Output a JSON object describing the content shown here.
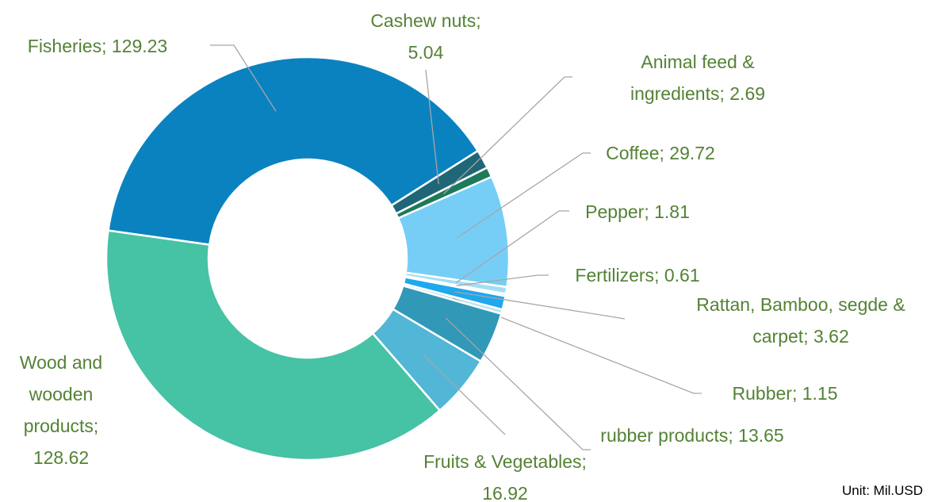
{
  "chart_data": {
    "type": "donut",
    "categories": [
      "Fisheries",
      "Cashew nuts",
      "Animal feed & ingredients",
      "Coffee",
      "Pepper",
      "Fertilizers",
      "Rattan, Bamboo, segde & carpet",
      "Rubber",
      "rubber products",
      "Fruits & Vegetables",
      "Wood and wooden products"
    ],
    "values": [
      129.23,
      5.04,
      2.69,
      29.72,
      1.81,
      0.61,
      3.62,
      1.15,
      13.65,
      16.92,
      128.62
    ],
    "colors": [
      "#0a82c0",
      "#1f6777",
      "#1d7a5c",
      "#76cef6",
      "#a3def5",
      "#d2f0fa",
      "#1fa8ec",
      "#b9e4f0",
      "#3298b8",
      "#52b6d6",
      "#46c2a4"
    ],
    "label_separator": "; ",
    "unit_note": "Unit: Mil.USD"
  }
}
